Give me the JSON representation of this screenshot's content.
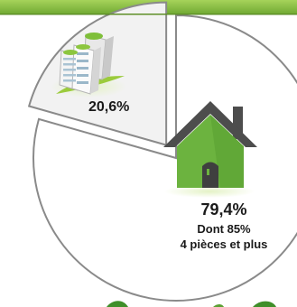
{
  "chart_data": {
    "type": "pie",
    "slices": [
      {
        "label": "20,6%",
        "value": 20.6,
        "color": "#f2f2f2",
        "icon": "apartment-building-icon",
        "exploded": true
      },
      {
        "label": "79,4%",
        "value": 79.4,
        "color": "#ffffff",
        "icon": "house-icon",
        "exploded": false,
        "annotation": [
          "Dont 85%",
          "4 pièces et plus"
        ]
      }
    ]
  },
  "colors": {
    "top_bar": "#8dc63f",
    "house_green": "#6cb33f",
    "roof_dark": "#4d4d4d",
    "outline": "#8a8a8a"
  }
}
